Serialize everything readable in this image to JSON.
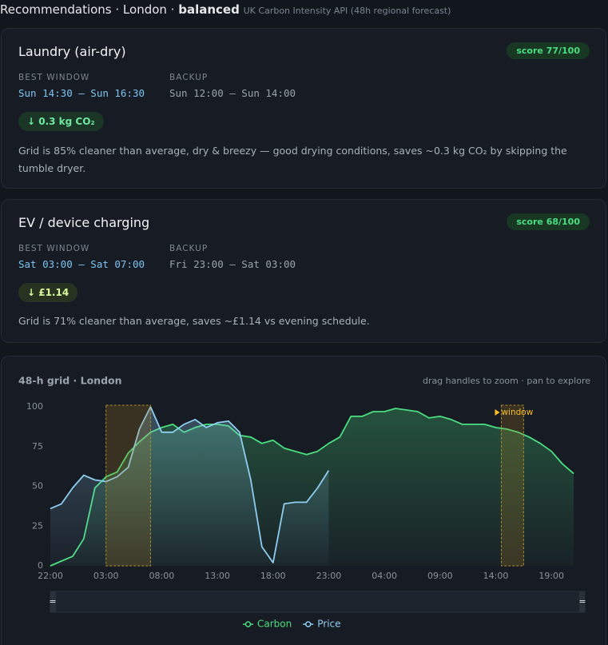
{
  "header": {
    "title": "Recommendations · London ·",
    "mode": "balanced",
    "source": "UK Carbon Intensity API (48h regional forecast)"
  },
  "cards": [
    {
      "title": "Laundry (air-dry)",
      "score": "score 77/100",
      "best_label": "BEST WINDOW",
      "best": "Sun 14:30 — Sun 16:30",
      "backup_label": "BACKUP",
      "backup": "Sun 12:00 — Sun 14:00",
      "badge": "↓ 0.3 kg CO₂",
      "text": "Grid is 85% cleaner than average, dry & breezy — good drying conditions, saves ~0.3 kg CO₂ by skipping the tumble dryer."
    },
    {
      "title": "EV / device charging",
      "score": "score 68/100",
      "best_label": "BEST WINDOW",
      "best": "Sat 03:00 — Sat 07:00",
      "backup_label": "BACKUP",
      "backup": "Fri 23:00 — Sat 03:00",
      "badge": "↓ £1.14",
      "text": "Grid is 71% cleaner than average, saves ~£1.14 vs evening schedule."
    }
  ],
  "chart_data": {
    "type": "line",
    "title": "48-h grid · London",
    "hint": "drag handles to zoom · pan to explore",
    "x": [
      0,
      1,
      2,
      3,
      4,
      5,
      6,
      7,
      8,
      9,
      10,
      11,
      12,
      13,
      14,
      15,
      16,
      17,
      18,
      19,
      20,
      21,
      22,
      23,
      24,
      25,
      26,
      27,
      28,
      29,
      30,
      31,
      32,
      33,
      34,
      35,
      36,
      37,
      38,
      39,
      40,
      41,
      42,
      43,
      44,
      45,
      46,
      47
    ],
    "xlim": [
      0,
      48
    ],
    "xticks": [
      {
        "value": 0,
        "label": "22:00"
      },
      {
        "value": 5,
        "label": "03:00"
      },
      {
        "value": 10,
        "label": "08:00"
      },
      {
        "value": 15,
        "label": "13:00"
      },
      {
        "value": 20,
        "label": "18:00"
      },
      {
        "value": 25,
        "label": "23:00"
      },
      {
        "value": 30,
        "label": "04:00"
      },
      {
        "value": 35,
        "label": "09:00"
      },
      {
        "value": 40,
        "label": "14:00"
      },
      {
        "value": 45,
        "label": "19:00"
      }
    ],
    "ylim": [
      0,
      100
    ],
    "yticks": [
      0,
      25,
      50,
      75,
      100
    ],
    "grid": false,
    "series": [
      {
        "name": "Carbon",
        "color": "#4ade80",
        "values": [
          0,
          3,
          6,
          17,
          49,
          56,
          59,
          71,
          78,
          84,
          87,
          89,
          84,
          87,
          89,
          89,
          88,
          82,
          81,
          77,
          79,
          74,
          72,
          70,
          72,
          77,
          81,
          94,
          94,
          97,
          97,
          99,
          98,
          97,
          93,
          94,
          92,
          89,
          89,
          89,
          87,
          86,
          84,
          81,
          77,
          72,
          64,
          58
        ]
      },
      {
        "name": "Price",
        "color": "#8ecdf0",
        "values": [
          36,
          39,
          49,
          57,
          54,
          53,
          56,
          62,
          86,
          100,
          84,
          84,
          89,
          92,
          87,
          90,
          91,
          84,
          54,
          12,
          2,
          39,
          40,
          40,
          49,
          60,
          null,
          null,
          null,
          null,
          null,
          null,
          null,
          null,
          null,
          null,
          null,
          null,
          null,
          null,
          null,
          null,
          null,
          null,
          null,
          null,
          null,
          null
        ]
      }
    ],
    "windows": [
      {
        "x": [
          5,
          9
        ]
      },
      {
        "x": [
          40.5,
          42.5
        ],
        "label": "window"
      }
    ],
    "slider_handle": "="
  }
}
